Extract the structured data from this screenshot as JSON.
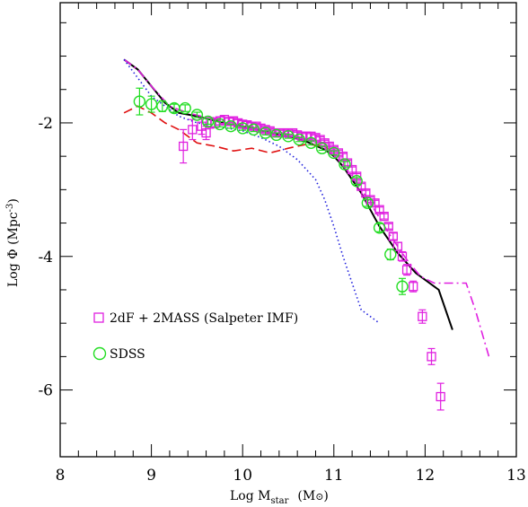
{
  "chart_data": {
    "type": "line",
    "xlabel": {
      "main": "Log M",
      "sub": "star",
      "unit": "(M",
      "unit_sym": "⊙",
      "unit_close": ")"
    },
    "ylabel": {
      "main": "Log Φ (Mpc",
      "sup": "-3",
      "close": ")"
    },
    "xlim": [
      8,
      13
    ],
    "ylim": [
      -7,
      -0.2
    ],
    "xticks": [
      8,
      9,
      10,
      11,
      12,
      13
    ],
    "xtick_labels": [
      "8",
      "9",
      "10",
      "11",
      "12",
      "13"
    ],
    "yticks": [
      -2,
      -4,
      -6
    ],
    "ytick_labels": [
      "-2",
      "-4",
      "-6"
    ],
    "grid": false,
    "legend": [
      {
        "label": "2dF + 2MASS (Salpeter IMF)",
        "marker": "square",
        "color": "#e020e0"
      },
      {
        "label": "SDSS",
        "marker": "circle",
        "color": "#22dd22"
      }
    ],
    "colors": {
      "magenta": "#e020e0",
      "green": "#22dd22",
      "black": "#000000",
      "red": "#e01010",
      "blue": "#2020dd"
    },
    "series": [
      {
        "style": "solid",
        "color": "#000000",
        "x": [
          8.7,
          8.85,
          9.0,
          9.15,
          9.3,
          9.5,
          9.7,
          9.9,
          10.1,
          10.3,
          10.5,
          10.7,
          10.9,
          11.0,
          11.1,
          11.2,
          11.3,
          11.4,
          11.5,
          11.6,
          11.7,
          11.8,
          11.9,
          12.0,
          12.15,
          12.3
        ],
        "y": [
          -1.05,
          -1.2,
          -1.45,
          -1.7,
          -1.85,
          -1.9,
          -1.97,
          -2.03,
          -2.08,
          -2.15,
          -2.2,
          -2.28,
          -2.4,
          -2.5,
          -2.65,
          -2.85,
          -3.05,
          -3.3,
          -3.55,
          -3.75,
          -3.95,
          -4.1,
          -4.25,
          -4.35,
          -4.5,
          -5.1
        ]
      },
      {
        "style": "dashdot",
        "color": "#e020e0",
        "x": [
          8.7,
          8.85,
          9.0,
          9.2,
          9.4,
          9.6,
          9.8,
          10.0,
          10.2,
          10.4,
          10.6,
          10.8,
          11.0,
          11.2,
          11.4,
          11.6,
          11.8,
          11.95,
          12.1,
          12.3,
          12.45,
          12.55,
          12.7
        ],
        "y": [
          -1.05,
          -1.2,
          -1.45,
          -1.75,
          -1.85,
          -1.92,
          -1.97,
          -2.03,
          -2.08,
          -2.14,
          -2.2,
          -2.3,
          -2.48,
          -2.8,
          -3.2,
          -3.65,
          -4.05,
          -4.3,
          -4.4,
          -4.4,
          -4.4,
          -4.8,
          -5.5
        ]
      },
      {
        "style": "dashed",
        "color": "#e01010",
        "x": [
          8.7,
          8.85,
          9.0,
          9.15,
          9.3,
          9.5,
          9.7,
          9.9,
          10.1,
          10.3,
          10.5,
          10.7,
          10.9,
          11.0
        ],
        "y": [
          -1.85,
          -1.75,
          -1.85,
          -2.0,
          -2.1,
          -2.3,
          -2.35,
          -2.42,
          -2.38,
          -2.45,
          -2.38,
          -2.32,
          -2.35,
          -2.45
        ]
      },
      {
        "style": "dotted",
        "color": "#2020dd",
        "x": [
          8.7,
          9.0,
          9.3,
          9.5,
          9.8,
          10.0,
          10.2,
          10.4,
          10.6,
          10.8,
          10.9,
          11.0,
          11.1,
          11.2,
          11.3,
          11.4,
          11.5
        ],
        "y": [
          -1.05,
          -1.6,
          -1.9,
          -2.0,
          -2.07,
          -2.12,
          -2.22,
          -2.35,
          -2.55,
          -2.85,
          -3.15,
          -3.55,
          -4.0,
          -4.4,
          -4.8,
          -4.9,
          -5.0
        ]
      }
    ],
    "points": [
      {
        "name": "2dF + 2MASS (Salpeter IMF)",
        "marker": "square",
        "color": "#e020e0",
        "x": [
          9.35,
          9.45,
          9.55,
          9.6,
          9.65,
          9.7,
          9.75,
          9.8,
          9.85,
          9.9,
          9.95,
          10.0,
          10.05,
          10.1,
          10.15,
          10.2,
          10.25,
          10.3,
          10.35,
          10.4,
          10.45,
          10.5,
          10.55,
          10.6,
          10.65,
          10.7,
          10.75,
          10.8,
          10.85,
          10.9,
          10.95,
          11.0,
          11.05,
          11.1,
          11.15,
          11.2,
          11.25,
          11.3,
          11.35,
          11.4,
          11.45,
          11.5,
          11.55,
          11.6,
          11.65,
          11.7,
          11.75,
          11.8,
          11.87,
          11.97,
          12.07,
          12.17
        ],
        "y": [
          -2.35,
          -2.1,
          -2.05,
          -2.15,
          -2.0,
          -2.0,
          -1.97,
          -1.95,
          -1.98,
          -1.97,
          -2.0,
          -2.02,
          -2.03,
          -2.05,
          -2.05,
          -2.08,
          -2.1,
          -2.12,
          -2.15,
          -2.15,
          -2.15,
          -2.15,
          -2.15,
          -2.18,
          -2.2,
          -2.2,
          -2.2,
          -2.22,
          -2.25,
          -2.3,
          -2.35,
          -2.4,
          -2.45,
          -2.5,
          -2.6,
          -2.7,
          -2.8,
          -2.95,
          -3.05,
          -3.15,
          -3.2,
          -3.3,
          -3.4,
          -3.55,
          -3.7,
          -3.85,
          -4.0,
          -4.2,
          -4.45,
          -4.9,
          -5.5,
          -6.1
        ],
        "err": [
          0.25,
          0.15,
          0.12,
          0.1,
          0.08,
          0.07,
          0.06,
          0.06,
          0.05,
          0.05,
          0.05,
          0.05,
          0.05,
          0.05,
          0.04,
          0.04,
          0.04,
          0.04,
          0.04,
          0.04,
          0.04,
          0.04,
          0.04,
          0.04,
          0.04,
          0.04,
          0.04,
          0.04,
          0.04,
          0.04,
          0.04,
          0.04,
          0.04,
          0.04,
          0.04,
          0.04,
          0.04,
          0.04,
          0.04,
          0.04,
          0.04,
          0.04,
          0.04,
          0.04,
          0.05,
          0.06,
          0.07,
          0.08,
          0.08,
          0.1,
          0.12,
          0.2
        ]
      },
      {
        "name": "SDSS",
        "marker": "circle",
        "color": "#22dd22",
        "x": [
          8.87,
          9.0,
          9.12,
          9.25,
          9.37,
          9.5,
          9.62,
          9.75,
          9.87,
          10.0,
          10.12,
          10.25,
          10.37,
          10.5,
          10.62,
          10.75,
          10.87,
          11.0,
          11.12,
          11.25,
          11.37,
          11.5,
          11.62,
          11.75
        ],
        "y": [
          -1.68,
          -1.72,
          -1.75,
          -1.78,
          -1.78,
          -1.88,
          -1.98,
          -2.02,
          -2.05,
          -2.08,
          -2.1,
          -2.15,
          -2.18,
          -2.2,
          -2.25,
          -2.3,
          -2.38,
          -2.45,
          -2.62,
          -2.87,
          -3.2,
          -3.57,
          -3.97,
          -4.45
        ],
        "err": [
          0.2,
          0.12,
          0.08,
          0.06,
          0.05,
          0.04,
          0.04,
          0.04,
          0.03,
          0.03,
          0.03,
          0.03,
          0.03,
          0.03,
          0.03,
          0.03,
          0.03,
          0.03,
          0.04,
          0.05,
          0.05,
          0.06,
          0.08,
          0.12
        ]
      }
    ]
  }
}
